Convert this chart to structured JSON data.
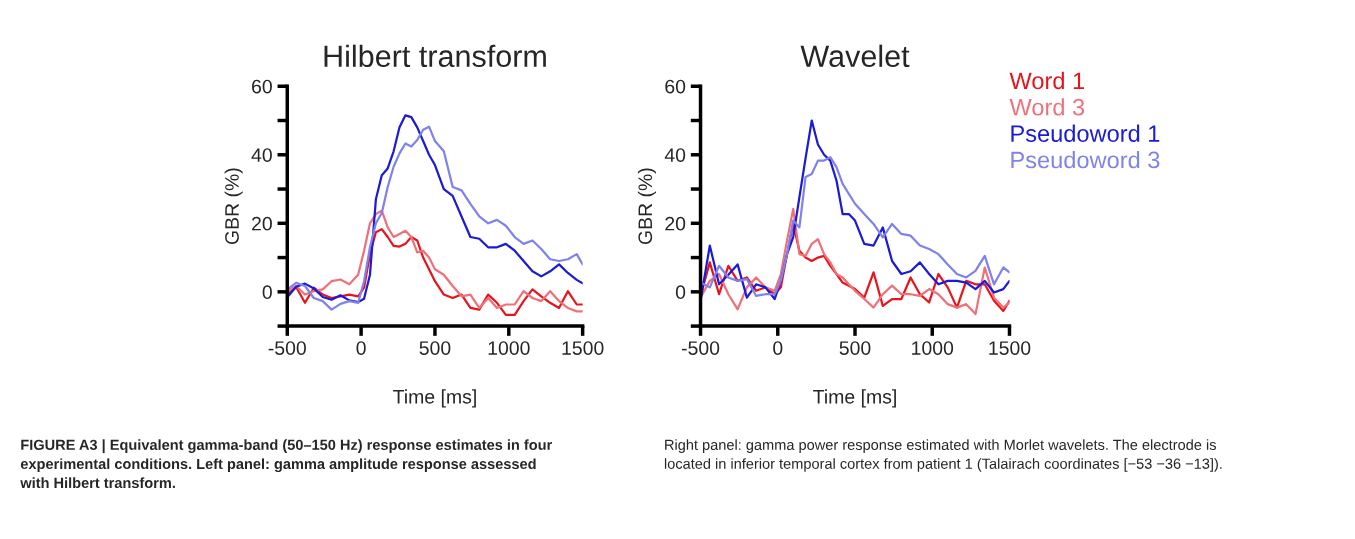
{
  "chart_data": [
    {
      "type": "line",
      "title": "Hilbert transform",
      "xlabel": "Time [ms]",
      "ylabel": "GBR (%)",
      "x": [
        -500,
        -440,
        -380,
        -320,
        -260,
        -200,
        -140,
        -80,
        -20,
        20,
        60,
        100,
        140,
        180,
        220,
        260,
        300,
        340,
        380,
        420,
        460,
        500,
        560,
        620,
        680,
        740,
        800,
        860,
        920,
        980,
        1040,
        1100,
        1160,
        1220,
        1280,
        1340,
        1400,
        1460,
        1500
      ],
      "series": [
        {
          "color": "#e8141c",
          "values": [
            -0.8,
            1.4,
            -3.2,
            1.2,
            -0.8,
            -1.8,
            -1.3,
            -0.8,
            -1.3,
            1.2,
            11,
            17.4,
            18.3,
            16,
            13.4,
            13.2,
            14,
            16,
            15,
            10,
            6.6,
            3.1,
            -0.8,
            -1.8,
            -0.8,
            -4.7,
            -5.2,
            -0.8,
            -3.2,
            -6.7,
            -6.7,
            -2.7,
            0.7,
            -1.3,
            -3.2,
            -4.7,
            0.2,
            -3.7,
            -3.7
          ]
        },
        {
          "color": "#f0707a",
          "values": [
            0.2,
            1.7,
            -0.8,
            0.2,
            0.7,
            3.1,
            3.6,
            2.2,
            5,
            12,
            20,
            22.7,
            23.7,
            18.8,
            16,
            16.9,
            17.8,
            16,
            11.5,
            12,
            10,
            6.6,
            5,
            1.7,
            -1.3,
            -0.8,
            -4.7,
            -1.8,
            -4.7,
            -3.7,
            -3.7,
            0.2,
            -1.8,
            -2.7,
            0.2,
            -2.7,
            -4.7,
            -5.7,
            -5.7
          ]
        },
        {
          "color": "#1a1ad8",
          "values": [
            -1.6,
            1.5,
            2.4,
            1,
            -1.5,
            -2.3,
            -1,
            -2.5,
            -3,
            -2,
            5,
            27,
            34,
            36,
            41,
            48,
            51.5,
            51,
            48,
            44,
            40,
            37,
            30,
            28,
            22,
            16,
            15.5,
            13,
            13,
            14,
            12,
            9,
            6,
            4.5,
            6,
            8,
            5.5,
            3.5,
            2.5
          ]
        },
        {
          "color": "#7f82ec",
          "values": [
            0.7,
            2.6,
            1.7,
            -1.8,
            -2.7,
            -5.2,
            -3.5,
            -2.7,
            -3.2,
            3.1,
            13,
            20,
            23,
            30.6,
            36.5,
            40.4,
            43.3,
            42.4,
            44.3,
            47.3,
            48.2,
            44,
            41,
            30.6,
            29.6,
            25.7,
            22,
            20,
            21,
            19.3,
            16,
            14,
            15,
            12.5,
            9.5,
            9,
            9.5,
            11,
            8
          ]
        }
      ],
      "xlim": [
        -500,
        1500
      ],
      "xticks": [
        -500,
        0,
        500,
        1000,
        1500
      ],
      "ylim": [
        -10,
        60
      ],
      "yticks": [
        {
          "value": -10,
          "label": null
        },
        0,
        {
          "value": 10,
          "label": null
        },
        20,
        {
          "value": 30,
          "label": null
        },
        40,
        {
          "value": 50,
          "label": null
        },
        60
      ],
      "grid": false,
      "annotations": [
        "FIGURE A3 | Equivalent gamma-band (50–150 Hz) response estimates in four experimental conditions. Left panel: gamma amplitude response assessed with Hilbert transform.",
        "Right panel: gamma power response estimated with Morlet wavelets. The electrode is located in inferior temporal cortex from patient 1 (Talairach coordinates [−53 −36 −13])."
      ]
    },
    {
      "type": "line",
      "title": "Wavelet",
      "xlabel": "Time [ms]",
      "ylabel": "GBR (%)",
      "x": [
        -500,
        -440,
        -380,
        -320,
        -260,
        -200,
        -140,
        -80,
        -20,
        20,
        60,
        100,
        140,
        180,
        220,
        260,
        300,
        340,
        380,
        420,
        460,
        500,
        560,
        620,
        680,
        740,
        800,
        860,
        920,
        980,
        1040,
        1100,
        1160,
        1220,
        1280,
        1340,
        1400,
        1460,
        1500
      ],
      "series": [
        {
          "name": "Word 1",
          "color": "#e8141c",
          "values": [
            -1.2,
            8.6,
            -0.7,
            7.6,
            3.2,
            4.2,
            0.3,
            1.3,
            -0.7,
            1.3,
            11,
            19.8,
            12,
            10,
            9,
            10,
            10.5,
            7.6,
            5.2,
            2.7,
            1.8,
            0.8,
            -1.7,
            5.7,
            -4.1,
            -2.1,
            -2.1,
            4.2,
            -0.7,
            -3.1,
            5.2,
            1.3,
            -4.6,
            3.2,
            2.2,
            2.2,
            -2.6,
            -5.6,
            -2.6
          ]
        },
        {
          "name": "Word 3",
          "color": "#f0707a",
          "values": [
            -1.7,
            3.2,
            5.2,
            -0.7,
            -5.1,
            1.3,
            4.2,
            1.3,
            0.3,
            5.2,
            15,
            24.2,
            11,
            10.5,
            14,
            15.4,
            11,
            8.6,
            5.2,
            4.2,
            2.2,
            0.3,
            -2.1,
            -4.6,
            -0.7,
            1.8,
            -0.7,
            -0.7,
            -1.2,
            0.8,
            -0.7,
            -3.6,
            -4.6,
            -3.6,
            -6.5,
            7.1,
            -1.7,
            -4.6,
            -3.1
          ]
        },
        {
          "name": "Pseudoword 1",
          "color": "#1a1ad8",
          "values": [
            -2.6,
            13.5,
            2.2,
            5,
            8,
            -1.7,
            2.2,
            1.3,
            -2.1,
            3.2,
            11,
            16,
            27.6,
            39,
            50,
            43,
            40,
            38.3,
            32.5,
            22.7,
            22.7,
            20.8,
            14,
            13.5,
            18.8,
            9,
            5.2,
            6,
            8.6,
            5.2,
            2.2,
            3.2,
            3.2,
            2.7,
            0.8,
            3.2,
            -0.2,
            0.8,
            3.2
          ]
        },
        {
          "name": "Pseudoword 3",
          "color": "#7f82ec",
          "values": [
            2.7,
            1.3,
            7.6,
            4.2,
            3.2,
            3.7,
            -1.2,
            -0.7,
            -0.7,
            3.2,
            11,
            20.8,
            18.8,
            33.5,
            34.4,
            38.3,
            38.3,
            39.3,
            36.4,
            31.5,
            28.6,
            25.7,
            22.7,
            19.8,
            15.9,
            19.8,
            16.9,
            16.4,
            13.5,
            12.5,
            11,
            8,
            5.2,
            4.2,
            6.1,
            10.5,
            2.2,
            7.1,
            5.7
          ]
        }
      ],
      "xlim": [
        -500,
        1500
      ],
      "xticks": [
        -500,
        0,
        500,
        1000,
        1500
      ],
      "ylim": [
        -10,
        60
      ],
      "yticks": [
        {
          "value": -10,
          "label": null
        },
        0,
        {
          "value": 10,
          "label": null
        },
        20,
        {
          "value": 30,
          "label": null
        },
        40,
        {
          "value": 50,
          "label": null
        },
        60
      ],
      "grid": false
    }
  ]
}
